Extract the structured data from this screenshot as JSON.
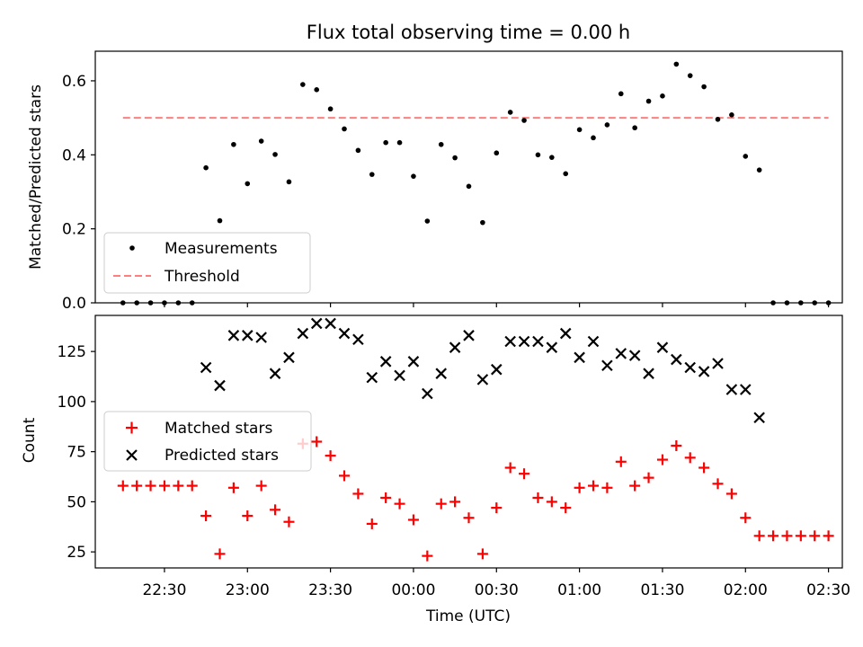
{
  "chart_data": [
    {
      "type": "scatter",
      "title": "Flux total observing time = 0.00 h",
      "xlabel": "",
      "ylabel": "Matched/Predicted stars",
      "ylim": [
        0,
        0.68
      ],
      "yticks": [
        0.0,
        0.2,
        0.4,
        0.6
      ],
      "ytick_labels": [
        "0.0",
        "0.2",
        "0.4",
        "0.6"
      ],
      "legend_position": "lower-left",
      "series": [
        {
          "name": "Measurements",
          "marker": "dot",
          "color": "#000000",
          "x": [
            "22:15",
            "22:20",
            "22:25",
            "22:30",
            "22:35",
            "22:40",
            "22:45",
            "22:50",
            "22:55",
            "23:00",
            "23:05",
            "23:10",
            "23:15",
            "23:20",
            "23:25",
            "23:30",
            "23:35",
            "23:40",
            "23:45",
            "23:50",
            "23:55",
            "00:00",
            "00:05",
            "00:10",
            "00:15",
            "00:20",
            "00:25",
            "00:30",
            "00:35",
            "00:40",
            "00:45",
            "00:50",
            "00:55",
            "01:00",
            "01:05",
            "01:10",
            "01:15",
            "01:20",
            "01:25",
            "01:30",
            "01:35",
            "01:40",
            "01:45",
            "01:50",
            "01:55",
            "02:00",
            "02:05",
            "02:10",
            "02:15",
            "02:20",
            "02:25",
            "02:30"
          ],
          "y": [
            0,
            0,
            0,
            0,
            0,
            0,
            0.365,
            0.222,
            0.428,
            0.322,
            0.437,
            0.401,
            0.327,
            0.59,
            0.576,
            0.524,
            0.47,
            0.412,
            0.347,
            0.433,
            0.433,
            0.342,
            0.221,
            0.428,
            0.392,
            0.315,
            0.217,
            0.405,
            0.515,
            0.493,
            0.4,
            0.393,
            0.349,
            0.468,
            0.446,
            0.481,
            0.565,
            0.473,
            0.545,
            0.559,
            0.645,
            0.614,
            0.584,
            0.496,
            0.508,
            0.396,
            0.359,
            0,
            0,
            0,
            0,
            0
          ]
        },
        {
          "name": "Threshold",
          "type": "line",
          "style": "dashed",
          "color": "#ff7f7f",
          "x": [
            "22:15",
            "02:30"
          ],
          "y": [
            0.5,
            0.5
          ]
        }
      ]
    },
    {
      "type": "scatter",
      "title": "",
      "xlabel": "Time (UTC)",
      "ylabel": "Count",
      "ylim": [
        17,
        143
      ],
      "yticks": [
        25,
        50,
        75,
        100,
        125
      ],
      "ytick_labels": [
        "25",
        "50",
        "75",
        "100",
        "125"
      ],
      "xticks": [
        "22:30",
        "23:00",
        "23:30",
        "00:00",
        "00:30",
        "01:00",
        "01:30",
        "02:00",
        "02:30"
      ],
      "legend_position": "center-left",
      "series": [
        {
          "name": "Matched stars",
          "marker": "plus",
          "color": "#ff0000",
          "x": [
            "22:15",
            "22:20",
            "22:25",
            "22:30",
            "22:35",
            "22:40",
            "22:45",
            "22:50",
            "22:55",
            "23:00",
            "23:05",
            "23:10",
            "23:15",
            "23:20",
            "23:25",
            "23:30",
            "23:35",
            "23:40",
            "23:45",
            "23:50",
            "23:55",
            "00:00",
            "00:05",
            "00:10",
            "00:15",
            "00:20",
            "00:25",
            "00:30",
            "00:35",
            "00:40",
            "00:45",
            "00:50",
            "00:55",
            "01:00",
            "01:05",
            "01:10",
            "01:15",
            "01:20",
            "01:25",
            "01:30",
            "01:35",
            "01:40",
            "01:45",
            "01:50",
            "01:55",
            "02:00",
            "02:05",
            "02:10",
            "02:15",
            "02:20",
            "02:25",
            "02:30"
          ],
          "y": [
            58,
            58,
            58,
            58,
            58,
            58,
            43,
            24,
            57,
            43,
            58,
            46,
            40,
            79,
            80,
            73,
            63,
            54,
            39,
            52,
            49,
            41,
            23,
            49,
            50,
            42,
            24,
            47,
            67,
            64,
            52,
            50,
            47,
            57,
            58,
            57,
            70,
            58,
            62,
            71,
            78,
            72,
            67,
            59,
            54,
            42,
            33,
            33,
            33,
            33,
            33,
            33
          ]
        },
        {
          "name": "Predicted stars",
          "marker": "x",
          "color": "#000000",
          "x": [
            "22:45",
            "22:50",
            "22:55",
            "23:00",
            "23:05",
            "23:10",
            "23:15",
            "23:20",
            "23:25",
            "23:30",
            "23:35",
            "23:40",
            "23:45",
            "23:50",
            "23:55",
            "00:00",
            "00:05",
            "00:10",
            "00:15",
            "00:20",
            "00:25",
            "00:30",
            "00:35",
            "00:40",
            "00:45",
            "00:50",
            "00:55",
            "01:00",
            "01:05",
            "01:10",
            "01:15",
            "01:20",
            "01:25",
            "01:30",
            "01:35",
            "01:40",
            "01:45",
            "01:50",
            "01:55",
            "02:00",
            "02:05"
          ],
          "y": [
            117,
            108,
            133,
            133,
            132,
            114,
            122,
            134,
            139,
            139,
            134,
            131,
            112,
            120,
            113,
            120,
            104,
            114,
            127,
            133,
            111,
            116,
            130,
            130,
            130,
            127,
            134,
            122,
            130,
            118,
            124,
            123,
            114,
            127,
            121,
            117,
            115,
            119,
            106,
            106,
            92
          ]
        }
      ]
    }
  ]
}
